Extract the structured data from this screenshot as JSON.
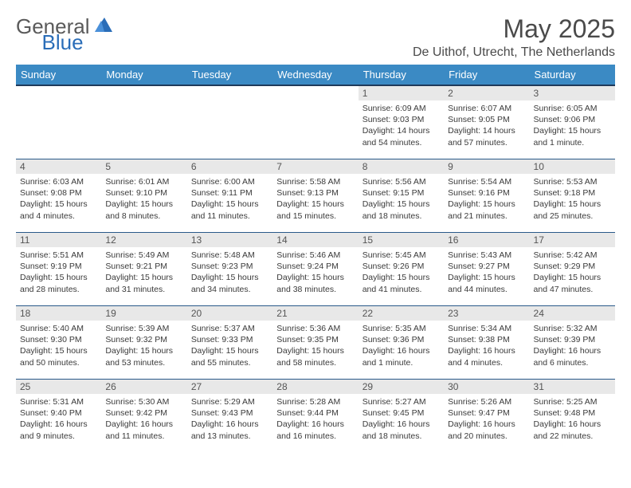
{
  "logo": {
    "general": "General",
    "blue": "Blue"
  },
  "title": "May 2025",
  "location": "De Uithof, Utrecht, The Netherlands",
  "weekday_header_bg": "#3b8ac4",
  "weekday_header_fg": "#ffffff",
  "daynum_bg": "#e8e8e8",
  "rule_color": "#2a5a8a",
  "weekdays": [
    "Sunday",
    "Monday",
    "Tuesday",
    "Wednesday",
    "Thursday",
    "Friday",
    "Saturday"
  ],
  "weeks": [
    [
      null,
      null,
      null,
      null,
      {
        "n": "1",
        "sr": "6:09 AM",
        "ss": "9:03 PM",
        "dl": "14 hours and 54 minutes."
      },
      {
        "n": "2",
        "sr": "6:07 AM",
        "ss": "9:05 PM",
        "dl": "14 hours and 57 minutes."
      },
      {
        "n": "3",
        "sr": "6:05 AM",
        "ss": "9:06 PM",
        "dl": "15 hours and 1 minute."
      }
    ],
    [
      {
        "n": "4",
        "sr": "6:03 AM",
        "ss": "9:08 PM",
        "dl": "15 hours and 4 minutes."
      },
      {
        "n": "5",
        "sr": "6:01 AM",
        "ss": "9:10 PM",
        "dl": "15 hours and 8 minutes."
      },
      {
        "n": "6",
        "sr": "6:00 AM",
        "ss": "9:11 PM",
        "dl": "15 hours and 11 minutes."
      },
      {
        "n": "7",
        "sr": "5:58 AM",
        "ss": "9:13 PM",
        "dl": "15 hours and 15 minutes."
      },
      {
        "n": "8",
        "sr": "5:56 AM",
        "ss": "9:15 PM",
        "dl": "15 hours and 18 minutes."
      },
      {
        "n": "9",
        "sr": "5:54 AM",
        "ss": "9:16 PM",
        "dl": "15 hours and 21 minutes."
      },
      {
        "n": "10",
        "sr": "5:53 AM",
        "ss": "9:18 PM",
        "dl": "15 hours and 25 minutes."
      }
    ],
    [
      {
        "n": "11",
        "sr": "5:51 AM",
        "ss": "9:19 PM",
        "dl": "15 hours and 28 minutes."
      },
      {
        "n": "12",
        "sr": "5:49 AM",
        "ss": "9:21 PM",
        "dl": "15 hours and 31 minutes."
      },
      {
        "n": "13",
        "sr": "5:48 AM",
        "ss": "9:23 PM",
        "dl": "15 hours and 34 minutes."
      },
      {
        "n": "14",
        "sr": "5:46 AM",
        "ss": "9:24 PM",
        "dl": "15 hours and 38 minutes."
      },
      {
        "n": "15",
        "sr": "5:45 AM",
        "ss": "9:26 PM",
        "dl": "15 hours and 41 minutes."
      },
      {
        "n": "16",
        "sr": "5:43 AM",
        "ss": "9:27 PM",
        "dl": "15 hours and 44 minutes."
      },
      {
        "n": "17",
        "sr": "5:42 AM",
        "ss": "9:29 PM",
        "dl": "15 hours and 47 minutes."
      }
    ],
    [
      {
        "n": "18",
        "sr": "5:40 AM",
        "ss": "9:30 PM",
        "dl": "15 hours and 50 minutes."
      },
      {
        "n": "19",
        "sr": "5:39 AM",
        "ss": "9:32 PM",
        "dl": "15 hours and 53 minutes."
      },
      {
        "n": "20",
        "sr": "5:37 AM",
        "ss": "9:33 PM",
        "dl": "15 hours and 55 minutes."
      },
      {
        "n": "21",
        "sr": "5:36 AM",
        "ss": "9:35 PM",
        "dl": "15 hours and 58 minutes."
      },
      {
        "n": "22",
        "sr": "5:35 AM",
        "ss": "9:36 PM",
        "dl": "16 hours and 1 minute."
      },
      {
        "n": "23",
        "sr": "5:34 AM",
        "ss": "9:38 PM",
        "dl": "16 hours and 4 minutes."
      },
      {
        "n": "24",
        "sr": "5:32 AM",
        "ss": "9:39 PM",
        "dl": "16 hours and 6 minutes."
      }
    ],
    [
      {
        "n": "25",
        "sr": "5:31 AM",
        "ss": "9:40 PM",
        "dl": "16 hours and 9 minutes."
      },
      {
        "n": "26",
        "sr": "5:30 AM",
        "ss": "9:42 PM",
        "dl": "16 hours and 11 minutes."
      },
      {
        "n": "27",
        "sr": "5:29 AM",
        "ss": "9:43 PM",
        "dl": "16 hours and 13 minutes."
      },
      {
        "n": "28",
        "sr": "5:28 AM",
        "ss": "9:44 PM",
        "dl": "16 hours and 16 minutes."
      },
      {
        "n": "29",
        "sr": "5:27 AM",
        "ss": "9:45 PM",
        "dl": "16 hours and 18 minutes."
      },
      {
        "n": "30",
        "sr": "5:26 AM",
        "ss": "9:47 PM",
        "dl": "16 hours and 20 minutes."
      },
      {
        "n": "31",
        "sr": "5:25 AM",
        "ss": "9:48 PM",
        "dl": "16 hours and 22 minutes."
      }
    ]
  ],
  "labels": {
    "sunrise": "Sunrise:",
    "sunset": "Sunset:",
    "daylight": "Daylight:"
  }
}
